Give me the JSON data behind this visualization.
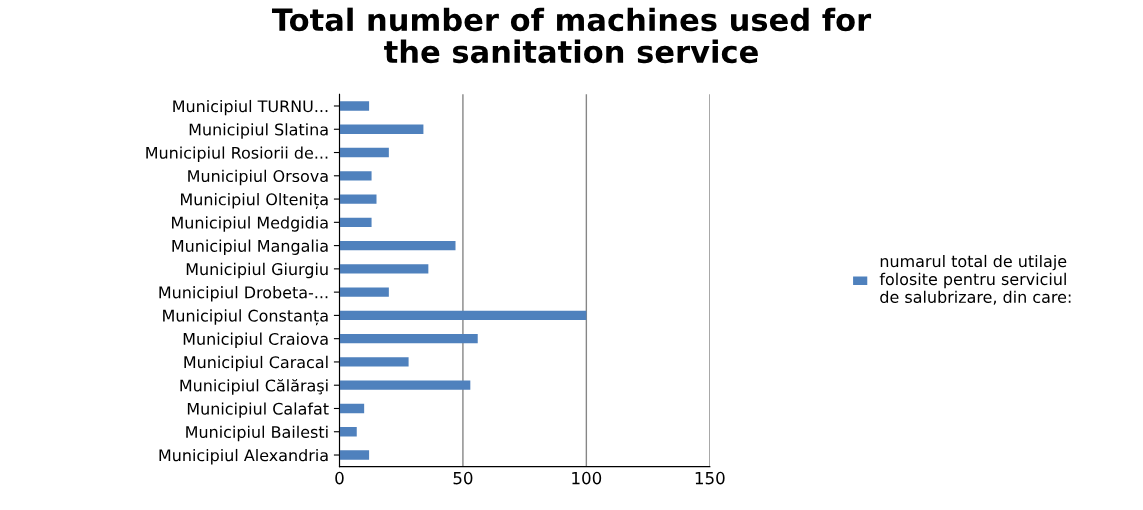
{
  "chart_data": {
    "type": "bar",
    "orientation": "horizontal",
    "title": "Total number of machines used for\nthe sanitation service",
    "categories": [
      "Municipiul TURNU...",
      "Municipiul Slatina",
      "Municipiul Rosiorii de...",
      "Municipiul Orsova",
      "Municipiul Oltenița",
      "Municipiul Medgidia",
      "Municipiul Mangalia",
      "Municipiul Giurgiu",
      "Municipiul Drobeta-...",
      "Municipiul Constanța",
      "Municipiul Craiova",
      "Municipiul Caracal",
      "Municipiul Călăraşi",
      "Municipiul Calafat",
      "Municipiul Bailesti",
      "Municipiul Alexandria"
    ],
    "series": [
      {
        "name": "numarul total de utilaje\nfolosite pentru serviciul\nde salubrizare, din care:",
        "color": "#4f81bd",
        "values": [
          12,
          34,
          20,
          13,
          15,
          13,
          47,
          36,
          20,
          100,
          56,
          28,
          53,
          10,
          7,
          12
        ]
      }
    ],
    "xlim": [
      0,
      150
    ],
    "xticks": [
      0,
      50,
      100,
      150
    ],
    "grid": "x",
    "legend": "right"
  }
}
